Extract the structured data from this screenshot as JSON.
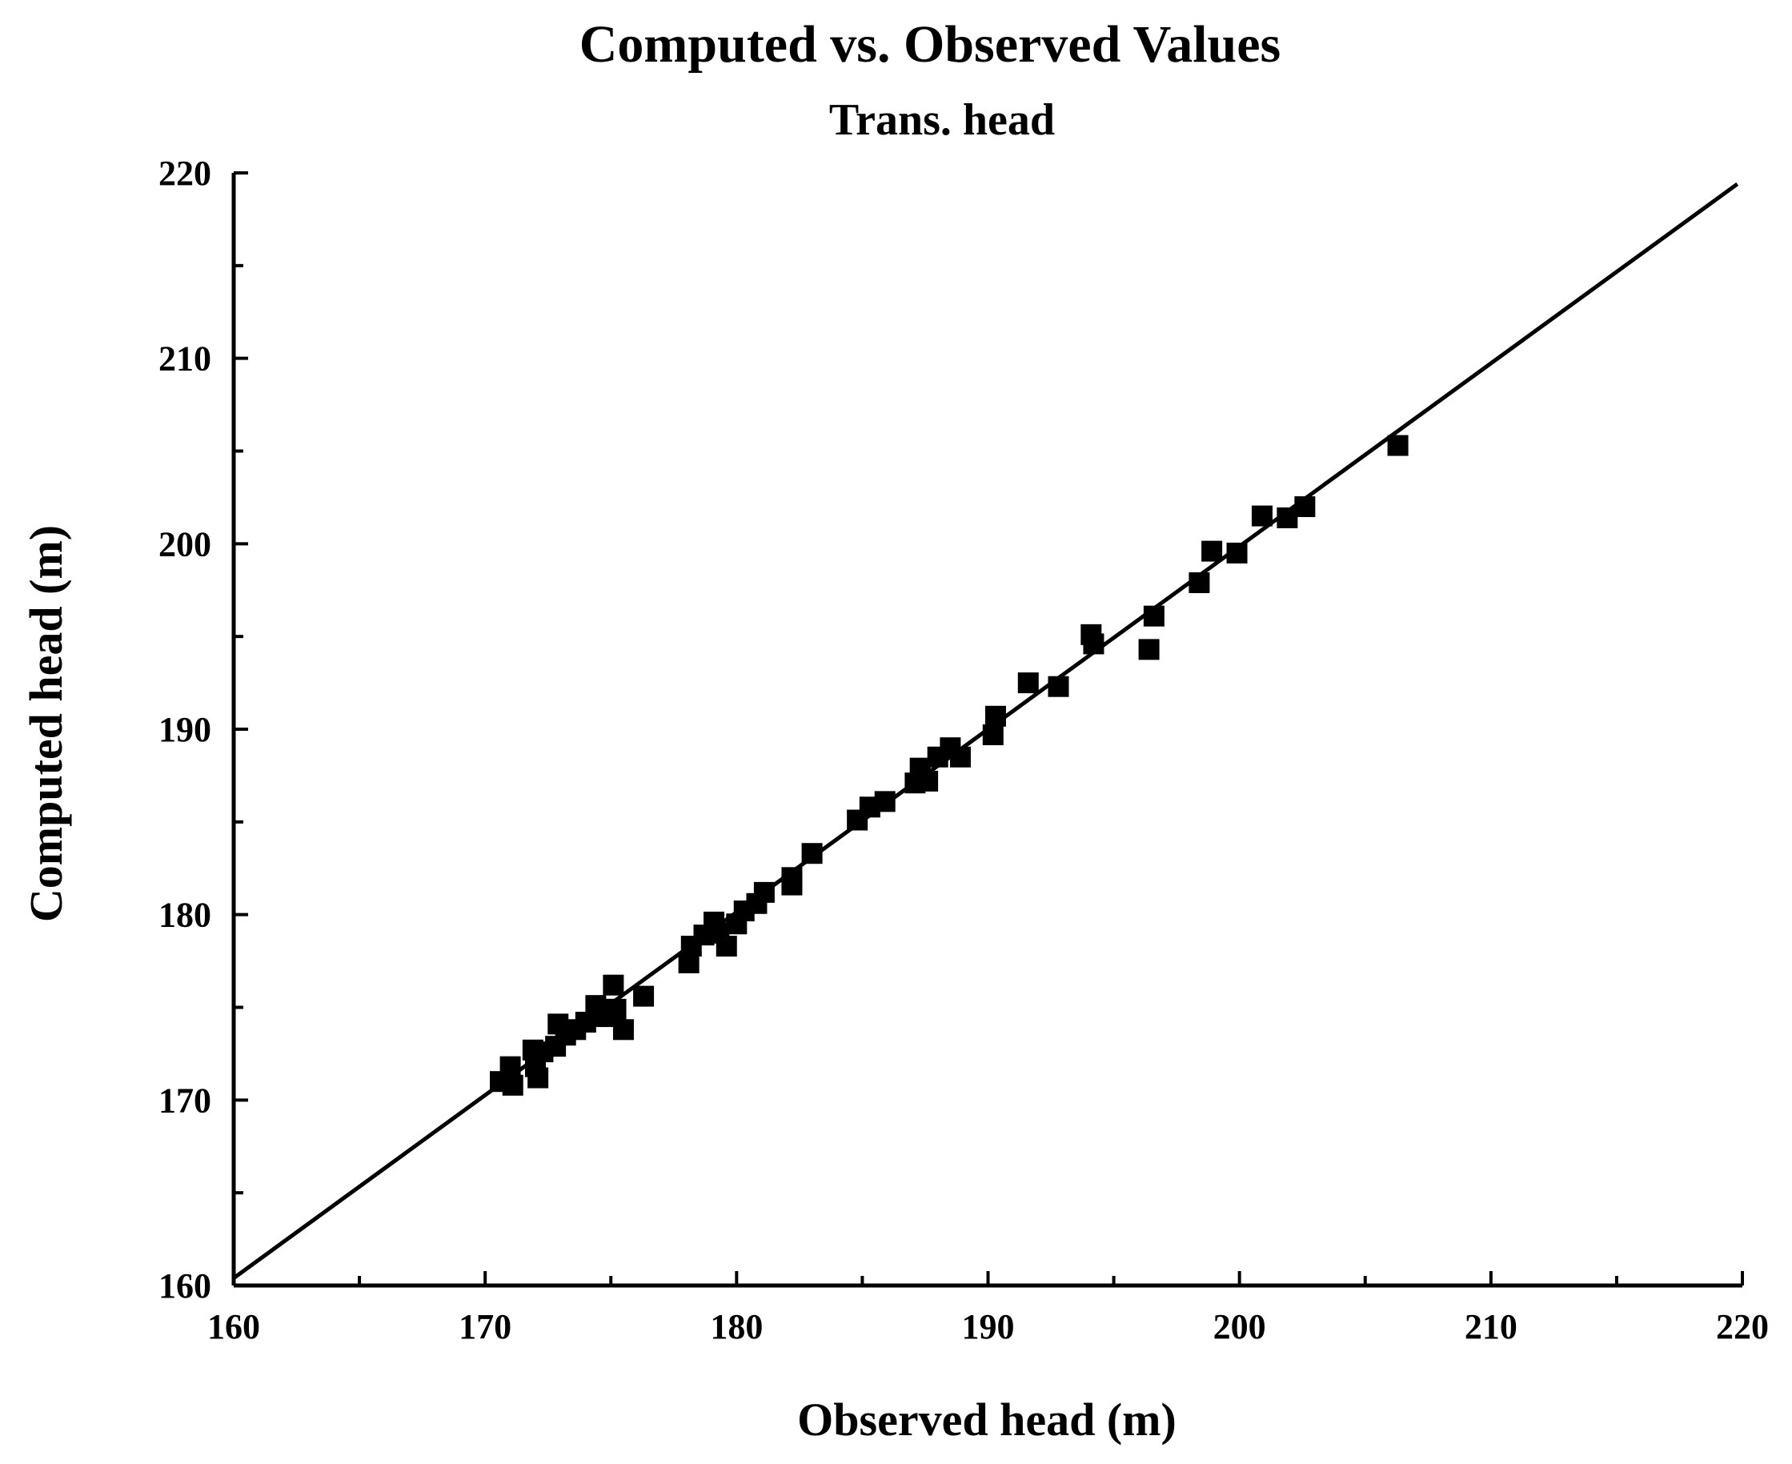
{
  "chart_data": {
    "type": "scatter",
    "title": "Computed vs. Observed Values",
    "subtitle": "Trans. head",
    "xlabel": "Observed head (m)",
    "ylabel": "Computed head (m)",
    "xlim": [
      160,
      220
    ],
    "ylim": [
      160,
      220
    ],
    "x_ticks": [
      160,
      170,
      180,
      190,
      200,
      210,
      220
    ],
    "y_ticks": [
      160,
      170,
      180,
      190,
      200,
      210,
      220
    ],
    "x_tick_labels": [
      "160",
      "170",
      "180",
      "190",
      "200",
      "210",
      "220"
    ],
    "y_tick_labels": [
      "160",
      "170",
      "180",
      "190",
      "200",
      "210",
      "220"
    ],
    "minor_tick_step": 5,
    "grid": false,
    "marker": "square",
    "marker_color": "#000000",
    "reference_line": {
      "x": [
        160,
        219.8
      ],
      "y": [
        160.4,
        219.4
      ]
    },
    "points": [
      [
        170.6,
        171.0
      ],
      [
        171.0,
        171.8
      ],
      [
        171.1,
        170.8
      ],
      [
        171.9,
        172.7
      ],
      [
        172.0,
        171.8
      ],
      [
        172.1,
        171.2
      ],
      [
        172.3,
        172.6
      ],
      [
        172.8,
        172.9
      ],
      [
        172.9,
        174.1
      ],
      [
        173.2,
        173.5
      ],
      [
        173.6,
        173.8
      ],
      [
        174.0,
        174.2
      ],
      [
        174.4,
        175.1
      ],
      [
        174.7,
        174.5
      ],
      [
        175.1,
        176.2
      ],
      [
        175.2,
        174.9
      ],
      [
        175.5,
        173.8
      ],
      [
        176.3,
        175.6
      ],
      [
        178.1,
        177.4
      ],
      [
        178.2,
        178.3
      ],
      [
        178.7,
        178.9
      ],
      [
        179.1,
        179.6
      ],
      [
        179.3,
        179.0
      ],
      [
        179.6,
        178.3
      ],
      [
        180.0,
        179.5
      ],
      [
        180.3,
        180.2
      ],
      [
        180.8,
        180.6
      ],
      [
        181.1,
        181.2
      ],
      [
        182.2,
        182.0
      ],
      [
        182.2,
        181.6
      ],
      [
        183.0,
        183.3
      ],
      [
        184.8,
        185.1
      ],
      [
        185.3,
        185.8
      ],
      [
        185.9,
        186.1
      ],
      [
        187.1,
        187.1
      ],
      [
        187.3,
        187.9
      ],
      [
        187.6,
        187.2
      ],
      [
        188.0,
        188.5
      ],
      [
        188.5,
        189.0
      ],
      [
        188.9,
        188.5
      ],
      [
        190.2,
        189.7
      ],
      [
        190.3,
        190.7
      ],
      [
        191.6,
        192.5
      ],
      [
        192.8,
        192.3
      ],
      [
        194.1,
        195.1
      ],
      [
        194.2,
        194.6
      ],
      [
        196.4,
        194.3
      ],
      [
        196.6,
        196.1
      ],
      [
        198.4,
        197.9
      ],
      [
        198.9,
        199.6
      ],
      [
        199.9,
        199.5
      ],
      [
        200.9,
        201.5
      ],
      [
        201.9,
        201.4
      ],
      [
        202.6,
        202.0
      ],
      [
        206.3,
        205.3
      ]
    ]
  }
}
